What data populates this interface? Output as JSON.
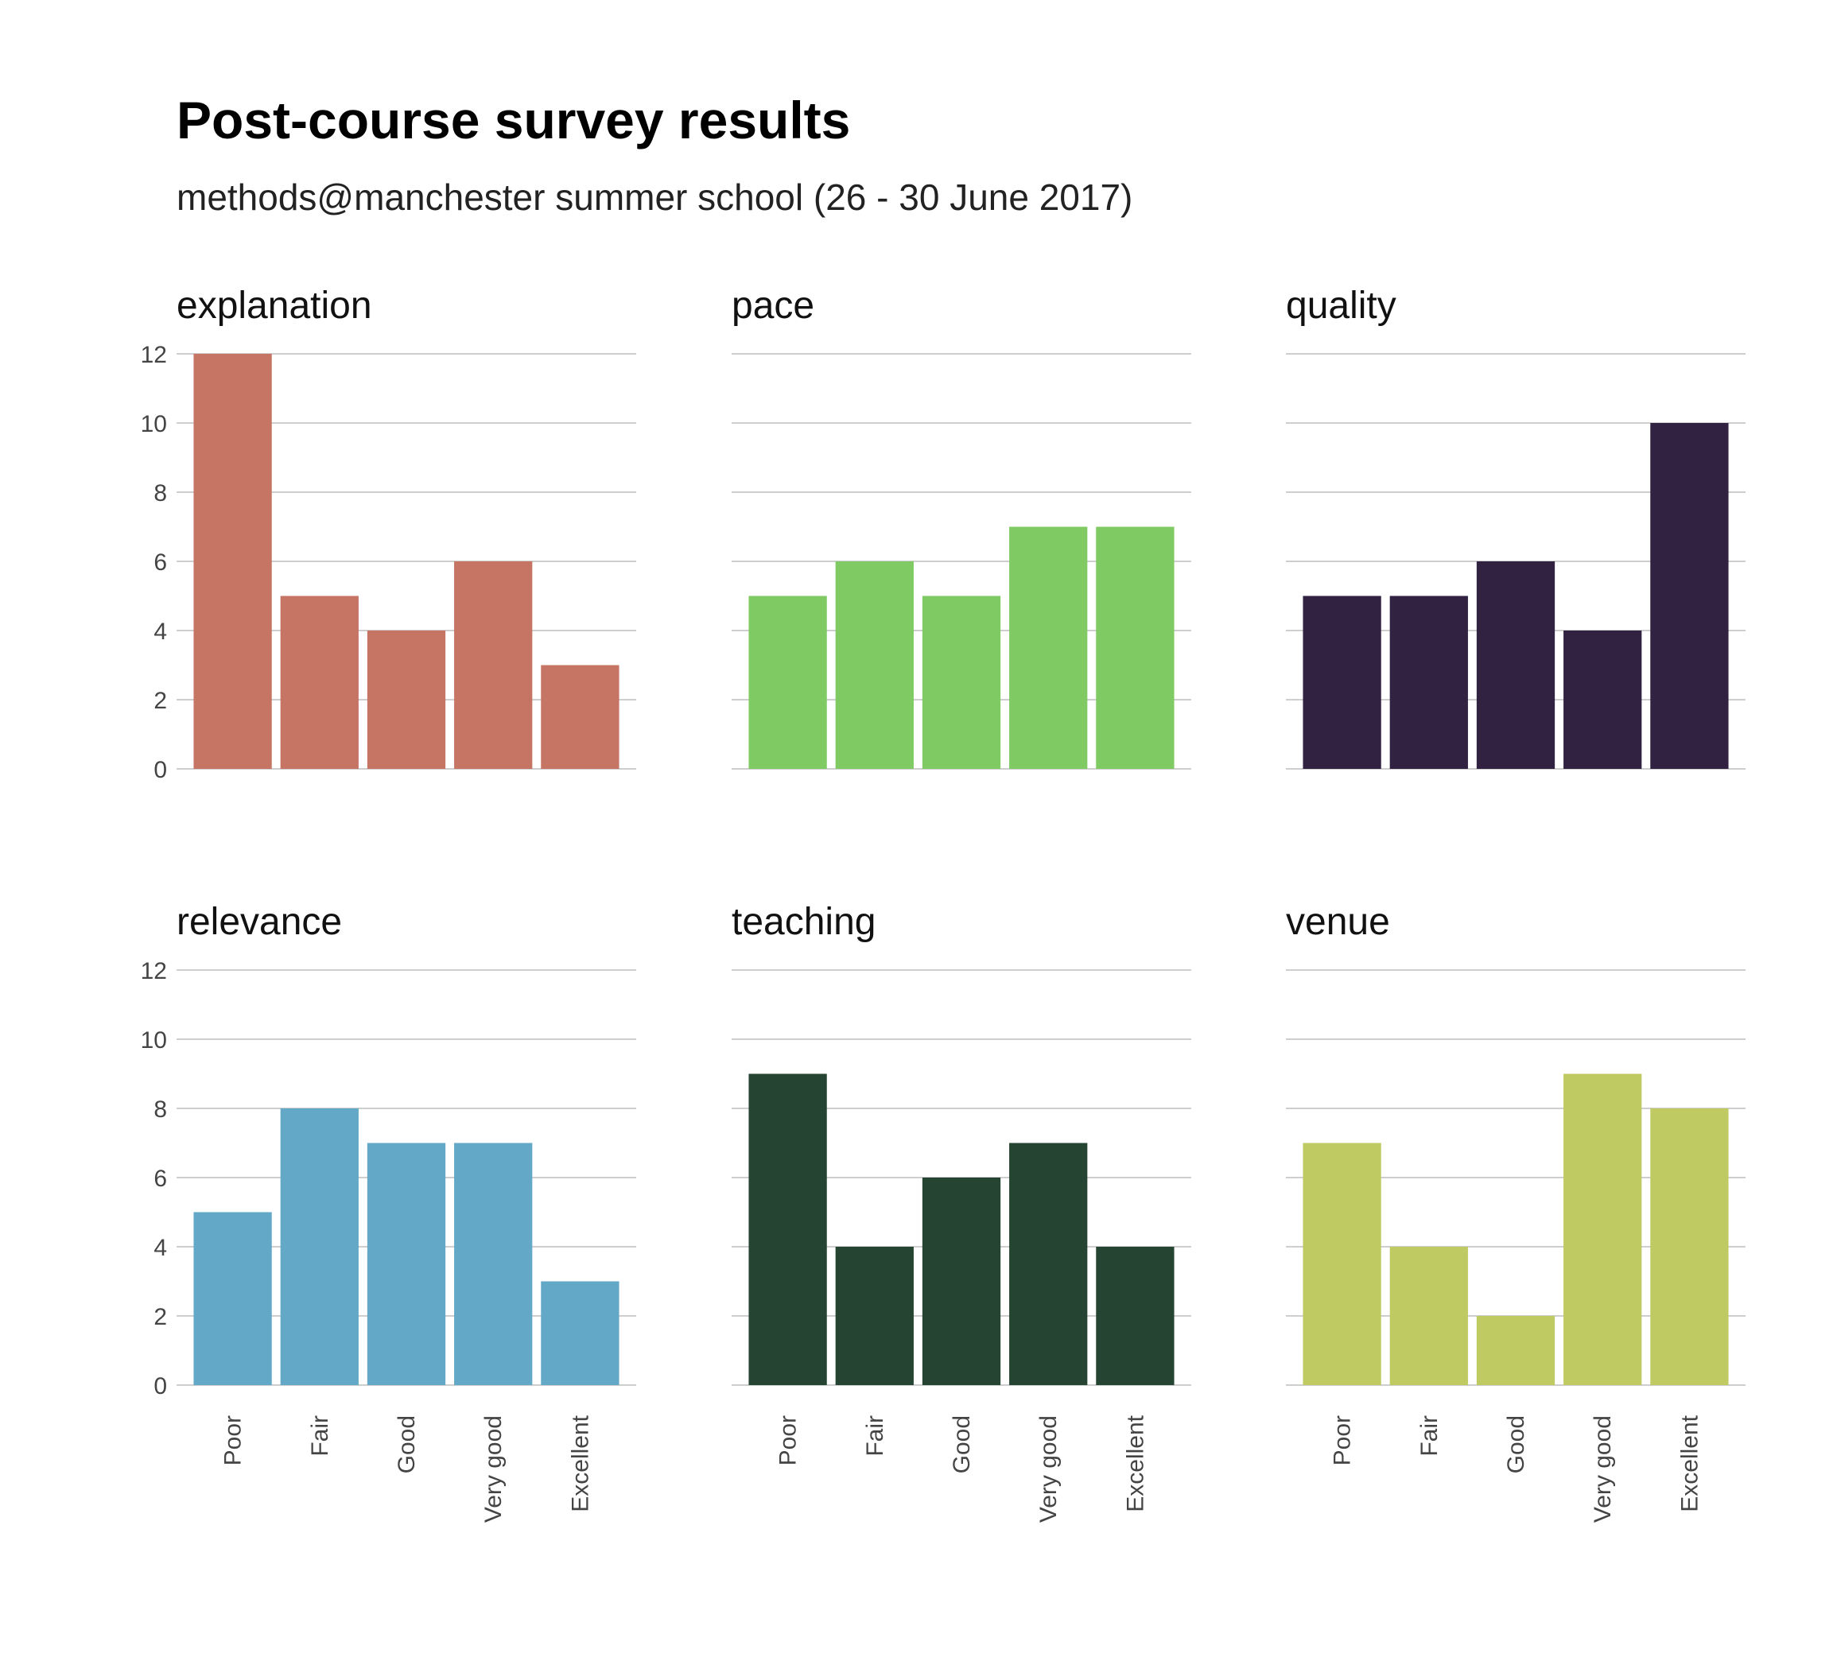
{
  "title": "Post-course survey results",
  "subtitle": "methods@manchester summer school (26 - 30 June 2017)",
  "chart_data": {
    "type": "bar",
    "layout": "facet-grid 2x3",
    "categories": [
      "Poor",
      "Fair",
      "Good",
      "Very good",
      "Excellent"
    ],
    "ylim": [
      0,
      12
    ],
    "yticks": [
      0,
      2,
      4,
      6,
      8,
      10,
      12
    ],
    "grid": true,
    "xlabel": "",
    "ylabel": "",
    "series": [
      {
        "name": "explanation",
        "color": "#c67565",
        "values": [
          12,
          5,
          4,
          6,
          3
        ]
      },
      {
        "name": "pace",
        "color": "#7fca63",
        "values": [
          5,
          6,
          5,
          7,
          7
        ]
      },
      {
        "name": "quality",
        "color": "#312242",
        "values": [
          5,
          5,
          6,
          4,
          10
        ]
      },
      {
        "name": "relevance",
        "color": "#63a9c7",
        "values": [
          5,
          8,
          7,
          7,
          3
        ]
      },
      {
        "name": "teaching",
        "color": "#254532",
        "values": [
          9,
          4,
          6,
          7,
          4
        ]
      },
      {
        "name": "venue",
        "color": "#bfca63",
        "values": [
          7,
          4,
          2,
          9,
          8
        ]
      }
    ]
  }
}
